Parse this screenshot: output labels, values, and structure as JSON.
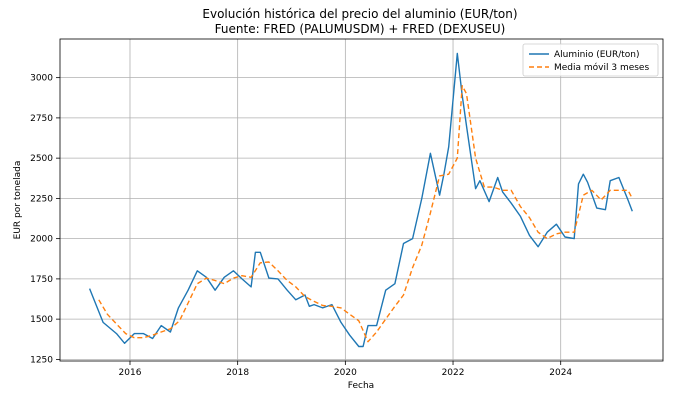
{
  "chart_data": {
    "type": "line",
    "title": "Evolución histórica del precio del aluminio (EUR/ton)",
    "subtitle": "Fuente: FRED (PALUMUSDM) + FRED (DEXUSEU)",
    "xlabel": "Fecha",
    "ylabel": "EUR por tonelada",
    "xlim": [
      2014.7,
      2025.9
    ],
    "ylim": [
      1240,
      3240
    ],
    "x_ticks": [
      2016,
      2018,
      2020,
      2022,
      2024
    ],
    "x_tick_labels": [
      "2016",
      "2018",
      "2020",
      "2022",
      "2024"
    ],
    "y_ticks": [
      1250,
      1500,
      1750,
      2000,
      2250,
      2500,
      2750,
      3000
    ],
    "y_tick_labels": [
      "1250",
      "1500",
      "1750",
      "2000",
      "2250",
      "2500",
      "2750",
      "3000"
    ],
    "grid": true,
    "legend": "top-right",
    "series": [
      {
        "name": "Aluminio (EUR/ton)",
        "color": "#1f77b4",
        "style": "solid",
        "x": [
          2015.25,
          2015.5,
          2015.75,
          2015.9,
          2016.08,
          2016.25,
          2016.42,
          2016.58,
          2016.75,
          2016.9,
          2017.08,
          2017.25,
          2017.42,
          2017.58,
          2017.75,
          2017.92,
          2018.08,
          2018.25,
          2018.33,
          2018.42,
          2018.58,
          2018.75,
          2018.92,
          2019.08,
          2019.25,
          2019.33,
          2019.42,
          2019.58,
          2019.75,
          2019.92,
          2020.08,
          2020.25,
          2020.33,
          2020.42,
          2020.58,
          2020.75,
          2020.92,
          2021.08,
          2021.25,
          2021.42,
          2021.58,
          2021.75,
          2021.83,
          2021.92,
          2022.08,
          2022.17,
          2022.25,
          2022.42,
          2022.5,
          2022.67,
          2022.83,
          2022.92,
          2023.08,
          2023.25,
          2023.42,
          2023.58,
          2023.75,
          2023.92,
          2024.08,
          2024.25,
          2024.33,
          2024.42,
          2024.5,
          2024.67,
          2024.83,
          2024.92,
          2025.08,
          2025.25,
          2025.33
        ],
        "y": [
          1690,
          1480,
          1410,
          1350,
          1410,
          1410,
          1380,
          1460,
          1420,
          1570,
          1680,
          1800,
          1760,
          1680,
          1760,
          1800,
          1750,
          1700,
          1915,
          1915,
          1755,
          1750,
          1680,
          1620,
          1650,
          1580,
          1590,
          1570,
          1590,
          1480,
          1400,
          1330,
          1330,
          1460,
          1460,
          1680,
          1720,
          1970,
          2000,
          2250,
          2530,
          2270,
          2400,
          2570,
          3150,
          2890,
          2700,
          2310,
          2360,
          2230,
          2380,
          2290,
          2220,
          2140,
          2020,
          1950,
          2040,
          2090,
          2010,
          2000,
          2340,
          2400,
          2350,
          2190,
          2180,
          2360,
          2380,
          2240,
          2170
        ]
      },
      {
        "name": "Media móvil 3 meses",
        "color": "#ff7f0e",
        "style": "dashed",
        "x": [
          2015.42,
          2015.58,
          2015.75,
          2015.92,
          2016.08,
          2016.25,
          2016.42,
          2016.58,
          2016.75,
          2016.92,
          2017.08,
          2017.25,
          2017.42,
          2017.58,
          2017.75,
          2017.92,
          2018.08,
          2018.25,
          2018.42,
          2018.58,
          2018.75,
          2018.92,
          2019.08,
          2019.25,
          2019.42,
          2019.58,
          2019.75,
          2019.92,
          2020.08,
          2020.25,
          2020.42,
          2020.58,
          2020.75,
          2020.92,
          2021.08,
          2021.25,
          2021.42,
          2021.58,
          2021.75,
          2021.92,
          2022.08,
          2022.17,
          2022.25,
          2022.42,
          2022.58,
          2022.75,
          2022.92,
          2023.08,
          2023.25,
          2023.42,
          2023.58,
          2023.75,
          2023.92,
          2024.08,
          2024.25,
          2024.42,
          2024.58,
          2024.75,
          2024.92,
          2025.08,
          2025.25,
          2025.33
        ],
        "y": [
          1620,
          1530,
          1470,
          1410,
          1385,
          1385,
          1400,
          1420,
          1440,
          1490,
          1600,
          1720,
          1755,
          1740,
          1720,
          1755,
          1770,
          1760,
          1850,
          1855,
          1800,
          1740,
          1700,
          1640,
          1610,
          1585,
          1580,
          1570,
          1530,
          1490,
          1360,
          1420,
          1500,
          1580,
          1650,
          1820,
          1960,
          2160,
          2390,
          2400,
          2500,
          2950,
          2900,
          2500,
          2320,
          2320,
          2300,
          2300,
          2200,
          2130,
          2040,
          2000,
          2030,
          2040,
          2040,
          2270,
          2300,
          2240,
          2300,
          2300,
          2300,
          2250
        ]
      }
    ]
  }
}
